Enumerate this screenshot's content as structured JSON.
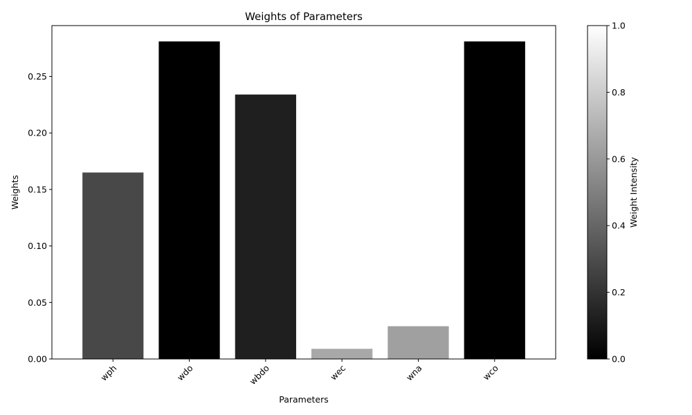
{
  "chart_data": {
    "type": "bar",
    "title": "Weights of Parameters",
    "xlabel": "Parameters",
    "ylabel": "Weights",
    "categories": [
      "wph",
      "wdo",
      "wbdo",
      "wec",
      "wna",
      "wco"
    ],
    "values": [
      0.165,
      0.281,
      0.234,
      0.009,
      0.029,
      0.281
    ],
    "bar_colors": [
      "#484848",
      "#000000",
      "#1f1f1f",
      "#a8a8a8",
      "#a0a0a0",
      "#000000"
    ],
    "ylim": [
      0,
      0.295
    ],
    "yticks": [
      "0.00",
      "0.05",
      "0.10",
      "0.15",
      "0.20",
      "0.25"
    ],
    "ytick_values": [
      0,
      0.05,
      0.1,
      0.15,
      0.2,
      0.25
    ],
    "grid": false,
    "colorbar": {
      "label": "Weight Intensity",
      "range": [
        0,
        1
      ],
      "ticks": [
        "0.0",
        "0.2",
        "0.4",
        "0.6",
        "0.8",
        "1.0"
      ],
      "tick_values": [
        0,
        0.2,
        0.4,
        0.6,
        0.8,
        1.0
      ],
      "colormap": "gray",
      "color_low": "#000000",
      "color_high": "#ffffff"
    }
  }
}
